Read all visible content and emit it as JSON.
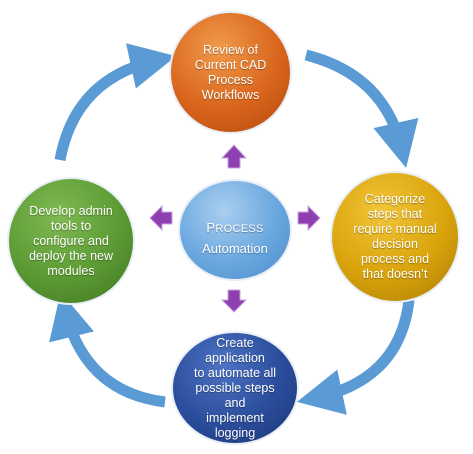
{
  "nodes": {
    "top": "Review of\nCurrent CAD\nProcess\nWorkflows",
    "right": "Categorize\nsteps that\nrequire manual\ndecision\nprocess and\nthat doesn’t",
    "bottom": "Create application\nto automate all\npossible steps and\nimplement\nlogging",
    "left": "Develop admin\ntools to\nconfigure and\ndeploy the new\nmodules"
  },
  "center": {
    "line1": "Process",
    "line2": "Automation"
  },
  "colors": {
    "cycle_arrow": "#5b9bd5",
    "pointer_arrow": "#8e3fb0",
    "node_top": "#d9651c",
    "node_right": "#d9a30b",
    "node_bottom": "#2a4d9b",
    "node_left": "#5b9a33",
    "node_center": "#6aa7df"
  }
}
